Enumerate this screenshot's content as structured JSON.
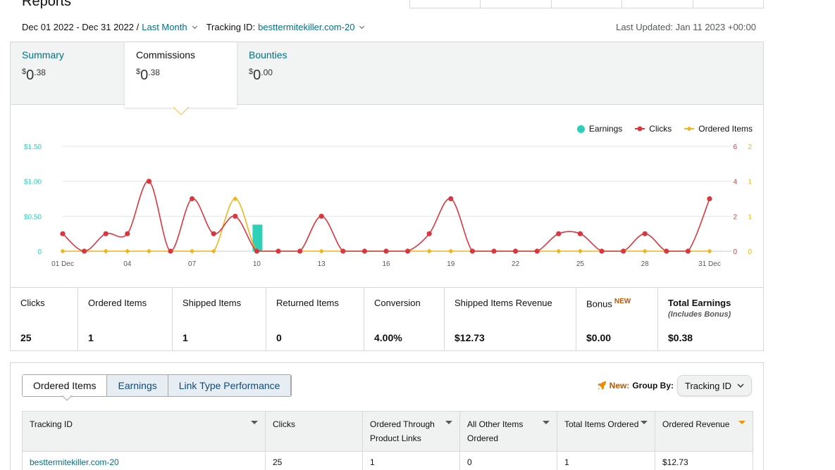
{
  "header": {
    "title": "Reports",
    "date_range": "Dec 01 2022 - Dec 31 2022 /",
    "period_label": "Last Month",
    "tracking_label": "Tracking ID:",
    "tracking_id": "besttermitekiller.com-20",
    "last_updated": "Last Updated: Jan 11 2023 +00:00"
  },
  "summary_tabs": [
    {
      "label": "Summary",
      "currency": "$",
      "whole": "0",
      "fraction": ".38",
      "active": false
    },
    {
      "label": "Commissions",
      "currency": "$",
      "whole": "0",
      "fraction": ".38",
      "active": true
    },
    {
      "label": "Bounties",
      "currency": "$",
      "whole": "0",
      "fraction": ".00",
      "active": false
    }
  ],
  "legend": {
    "earnings": "Earnings",
    "clicks": "Clicks",
    "ordered": "Ordered Items"
  },
  "colors": {
    "earnings": "#2ed1b8",
    "clicks": "#d9373f",
    "ordered": "#f0b41e",
    "link": "#007185",
    "accent_new": "#c45500"
  },
  "chart_data": {
    "type": "line",
    "x_tick_labels": [
      "01 Dec",
      "04",
      "07",
      "10",
      "13",
      "16",
      "19",
      "22",
      "25",
      "28",
      "31 Dec"
    ],
    "x": [
      1,
      2,
      3,
      4,
      5,
      6,
      7,
      8,
      9,
      10,
      11,
      12,
      13,
      14,
      15,
      16,
      17,
      18,
      19,
      20,
      21,
      22,
      23,
      24,
      25,
      26,
      27,
      28,
      29,
      30,
      31
    ],
    "y_left_ticks": [
      "$1.50",
      "$1.00",
      "$0.50",
      "0"
    ],
    "y_clicks_ticks": [
      "6",
      "4",
      "2",
      "0"
    ],
    "y_ordered_ticks": [
      "2",
      "1",
      "1",
      "0"
    ],
    "ylim_earnings": [
      0,
      1.5
    ],
    "ylim_clicks": [
      0,
      6
    ],
    "ylim_ordered": [
      0,
      2
    ],
    "series": [
      {
        "name": "Earnings",
        "type": "bar",
        "axis": "earnings",
        "values": [
          0,
          0,
          0,
          0,
          0,
          0,
          0,
          0,
          0,
          0.38,
          0,
          0,
          0,
          0,
          0,
          0,
          0,
          0,
          0,
          0,
          0,
          0,
          0,
          0,
          0,
          0,
          0,
          0,
          0,
          0,
          0
        ]
      },
      {
        "name": "Clicks",
        "type": "line",
        "axis": "clicks",
        "values": [
          1,
          0,
          1,
          1,
          4,
          0,
          3,
          1,
          2,
          0,
          0,
          0,
          2,
          0,
          0,
          0,
          0,
          1,
          3,
          0,
          0,
          0,
          0,
          1,
          1,
          0,
          0,
          1,
          0,
          0,
          3
        ]
      },
      {
        "name": "Ordered Items",
        "type": "line",
        "axis": "ordered",
        "values": [
          0,
          0,
          0,
          0,
          0,
          0,
          0,
          0,
          1,
          0,
          0,
          0,
          0,
          0,
          0,
          0,
          0,
          0,
          0,
          0,
          0,
          0,
          0,
          0,
          0,
          0,
          0,
          0,
          0,
          0,
          0
        ]
      }
    ]
  },
  "metrics": [
    {
      "label": "Clicks",
      "value": "25"
    },
    {
      "label": "Ordered Items",
      "value": "1"
    },
    {
      "label": "Shipped Items",
      "value": "1"
    },
    {
      "label": "Returned Items",
      "value": "0"
    },
    {
      "label": "Conversion",
      "value": "4.00%"
    },
    {
      "label": "Shipped Items Revenue",
      "value": "$12.73"
    },
    {
      "label": "Bonus",
      "badge": "NEW",
      "value": "$0.00"
    },
    {
      "label": "Total Earnings",
      "sub": "(Includes Bonus)",
      "value": "$0.38"
    }
  ],
  "bottom": {
    "tabs": [
      "Ordered Items",
      "Earnings",
      "Link Type Performance"
    ],
    "new_label": "New:",
    "group_by_label": "Group By:",
    "group_by_value": "Tracking ID",
    "table": {
      "headers": [
        "Tracking ID",
        "Clicks",
        "Ordered Through Product Links",
        "All Other Items Ordered",
        "Total Items Ordered",
        "Ordered Revenue"
      ],
      "rows": [
        [
          "besttermitekiller.com-20",
          "25",
          "1",
          "0",
          "1",
          "$12.73"
        ]
      ]
    }
  }
}
